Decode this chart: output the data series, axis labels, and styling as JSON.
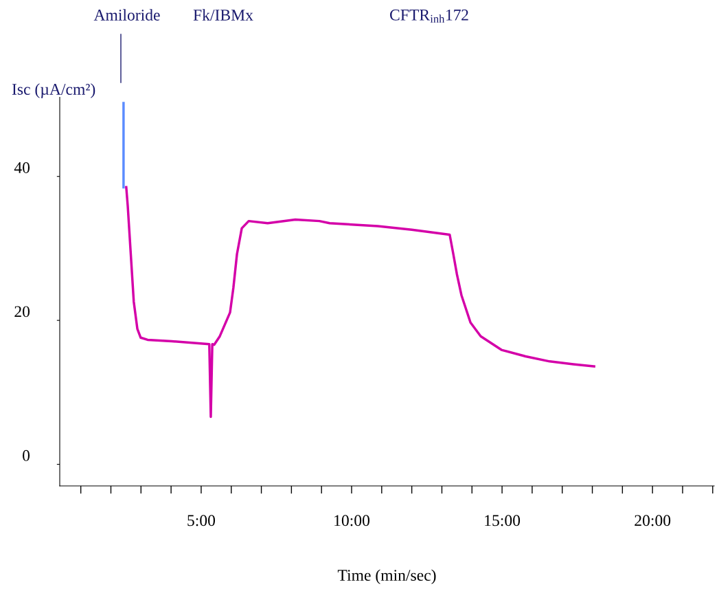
{
  "chart_data": {
    "type": "line",
    "xlabel": "Time (min/sec)",
    "ylabel": "Isc (µA/cm²)",
    "xlim": [
      0.3,
      22.05
    ],
    "ylim": [
      -3,
      51
    ],
    "xticks": [
      {
        "value": 1,
        "label": null
      },
      {
        "value": 2,
        "label": null
      },
      {
        "value": 3,
        "label": null
      },
      {
        "value": 4,
        "label": null
      },
      {
        "value": 5,
        "label": "5:00"
      },
      {
        "value": 6,
        "label": null
      },
      {
        "value": 7,
        "label": null
      },
      {
        "value": 8,
        "label": null
      },
      {
        "value": 9,
        "label": null
      },
      {
        "value": 10,
        "label": "10:00"
      },
      {
        "value": 11,
        "label": null
      },
      {
        "value": 12,
        "label": null
      },
      {
        "value": 13,
        "label": null
      },
      {
        "value": 14,
        "label": null
      },
      {
        "value": 15,
        "label": "15:00"
      },
      {
        "value": 16,
        "label": null
      },
      {
        "value": 17,
        "label": null
      },
      {
        "value": 18,
        "label": null
      },
      {
        "value": 19,
        "label": null
      },
      {
        "value": 20,
        "label": "20:00"
      },
      {
        "value": 21,
        "label": null
      },
      {
        "value": 22,
        "label": null
      }
    ],
    "yticks": [
      0,
      20,
      40
    ],
    "grid": false,
    "legend": false,
    "marker": "none",
    "line_style": "solid",
    "series": [
      {
        "color": "#5b8cff",
        "x": [
          2.42,
          2.42
        ],
        "values": [
          50.2,
          38.5
        ]
      },
      {
        "color": "#d400a8",
        "x": [
          2.51,
          2.56,
          2.76,
          2.88,
          2.99,
          3.22,
          4.02,
          5.27,
          5.32,
          5.37,
          5.43,
          5.62,
          5.96,
          6.07,
          6.19,
          6.35,
          6.58,
          7.21,
          8.13,
          8.93,
          9.27,
          10.87,
          12.0,
          13.26,
          13.38,
          13.5,
          13.65,
          13.95,
          14.29,
          14.98,
          15.78,
          16.58,
          17.37,
          18.06
        ],
        "values": [
          38.5,
          35.9,
          22.6,
          18.8,
          17.6,
          17.3,
          17.1,
          16.7,
          6.6,
          16.7,
          16.6,
          17.8,
          21.1,
          24.5,
          29.2,
          32.8,
          33.8,
          33.5,
          34.0,
          33.8,
          33.5,
          33.1,
          32.6,
          31.9,
          29.2,
          26.4,
          23.5,
          19.7,
          17.8,
          15.9,
          15.0,
          14.3,
          13.9,
          13.6
        ]
      }
    ],
    "annotations": [
      "Amiloride",
      "Fk/IBMx",
      "CFTR$_{inh}$172"
    ]
  }
}
